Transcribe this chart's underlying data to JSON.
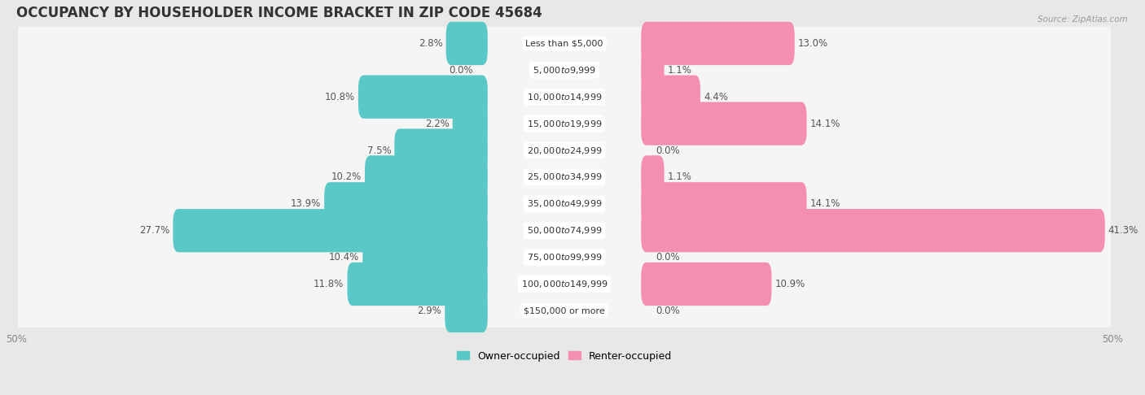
{
  "title": "OCCUPANCY BY HOUSEHOLDER INCOME BRACKET IN ZIP CODE 45684",
  "source": "Source: ZipAtlas.com",
  "categories": [
    "Less than $5,000",
    "$5,000 to $9,999",
    "$10,000 to $14,999",
    "$15,000 to $19,999",
    "$20,000 to $24,999",
    "$25,000 to $34,999",
    "$35,000 to $49,999",
    "$50,000 to $74,999",
    "$75,000 to $99,999",
    "$100,000 to $149,999",
    "$150,000 or more"
  ],
  "owner_values": [
    2.8,
    0.0,
    10.8,
    2.2,
    7.5,
    10.2,
    13.9,
    27.7,
    10.4,
    11.8,
    2.9
  ],
  "renter_values": [
    13.0,
    1.1,
    4.4,
    14.1,
    0.0,
    1.1,
    14.1,
    41.3,
    0.0,
    10.9,
    0.0
  ],
  "owner_color": "#5BC8C8",
  "renter_color": "#F48FB1",
  "background_color": "#e8e8e8",
  "row_bg_color": "#f5f5f5",
  "bar_bg_color": "#f5f5f5",
  "xlim": 50.0,
  "bar_height": 0.62,
  "title_fontsize": 12,
  "label_fontsize": 8.5,
  "category_fontsize": 8,
  "legend_fontsize": 9,
  "axis_label_fontsize": 8.5
}
